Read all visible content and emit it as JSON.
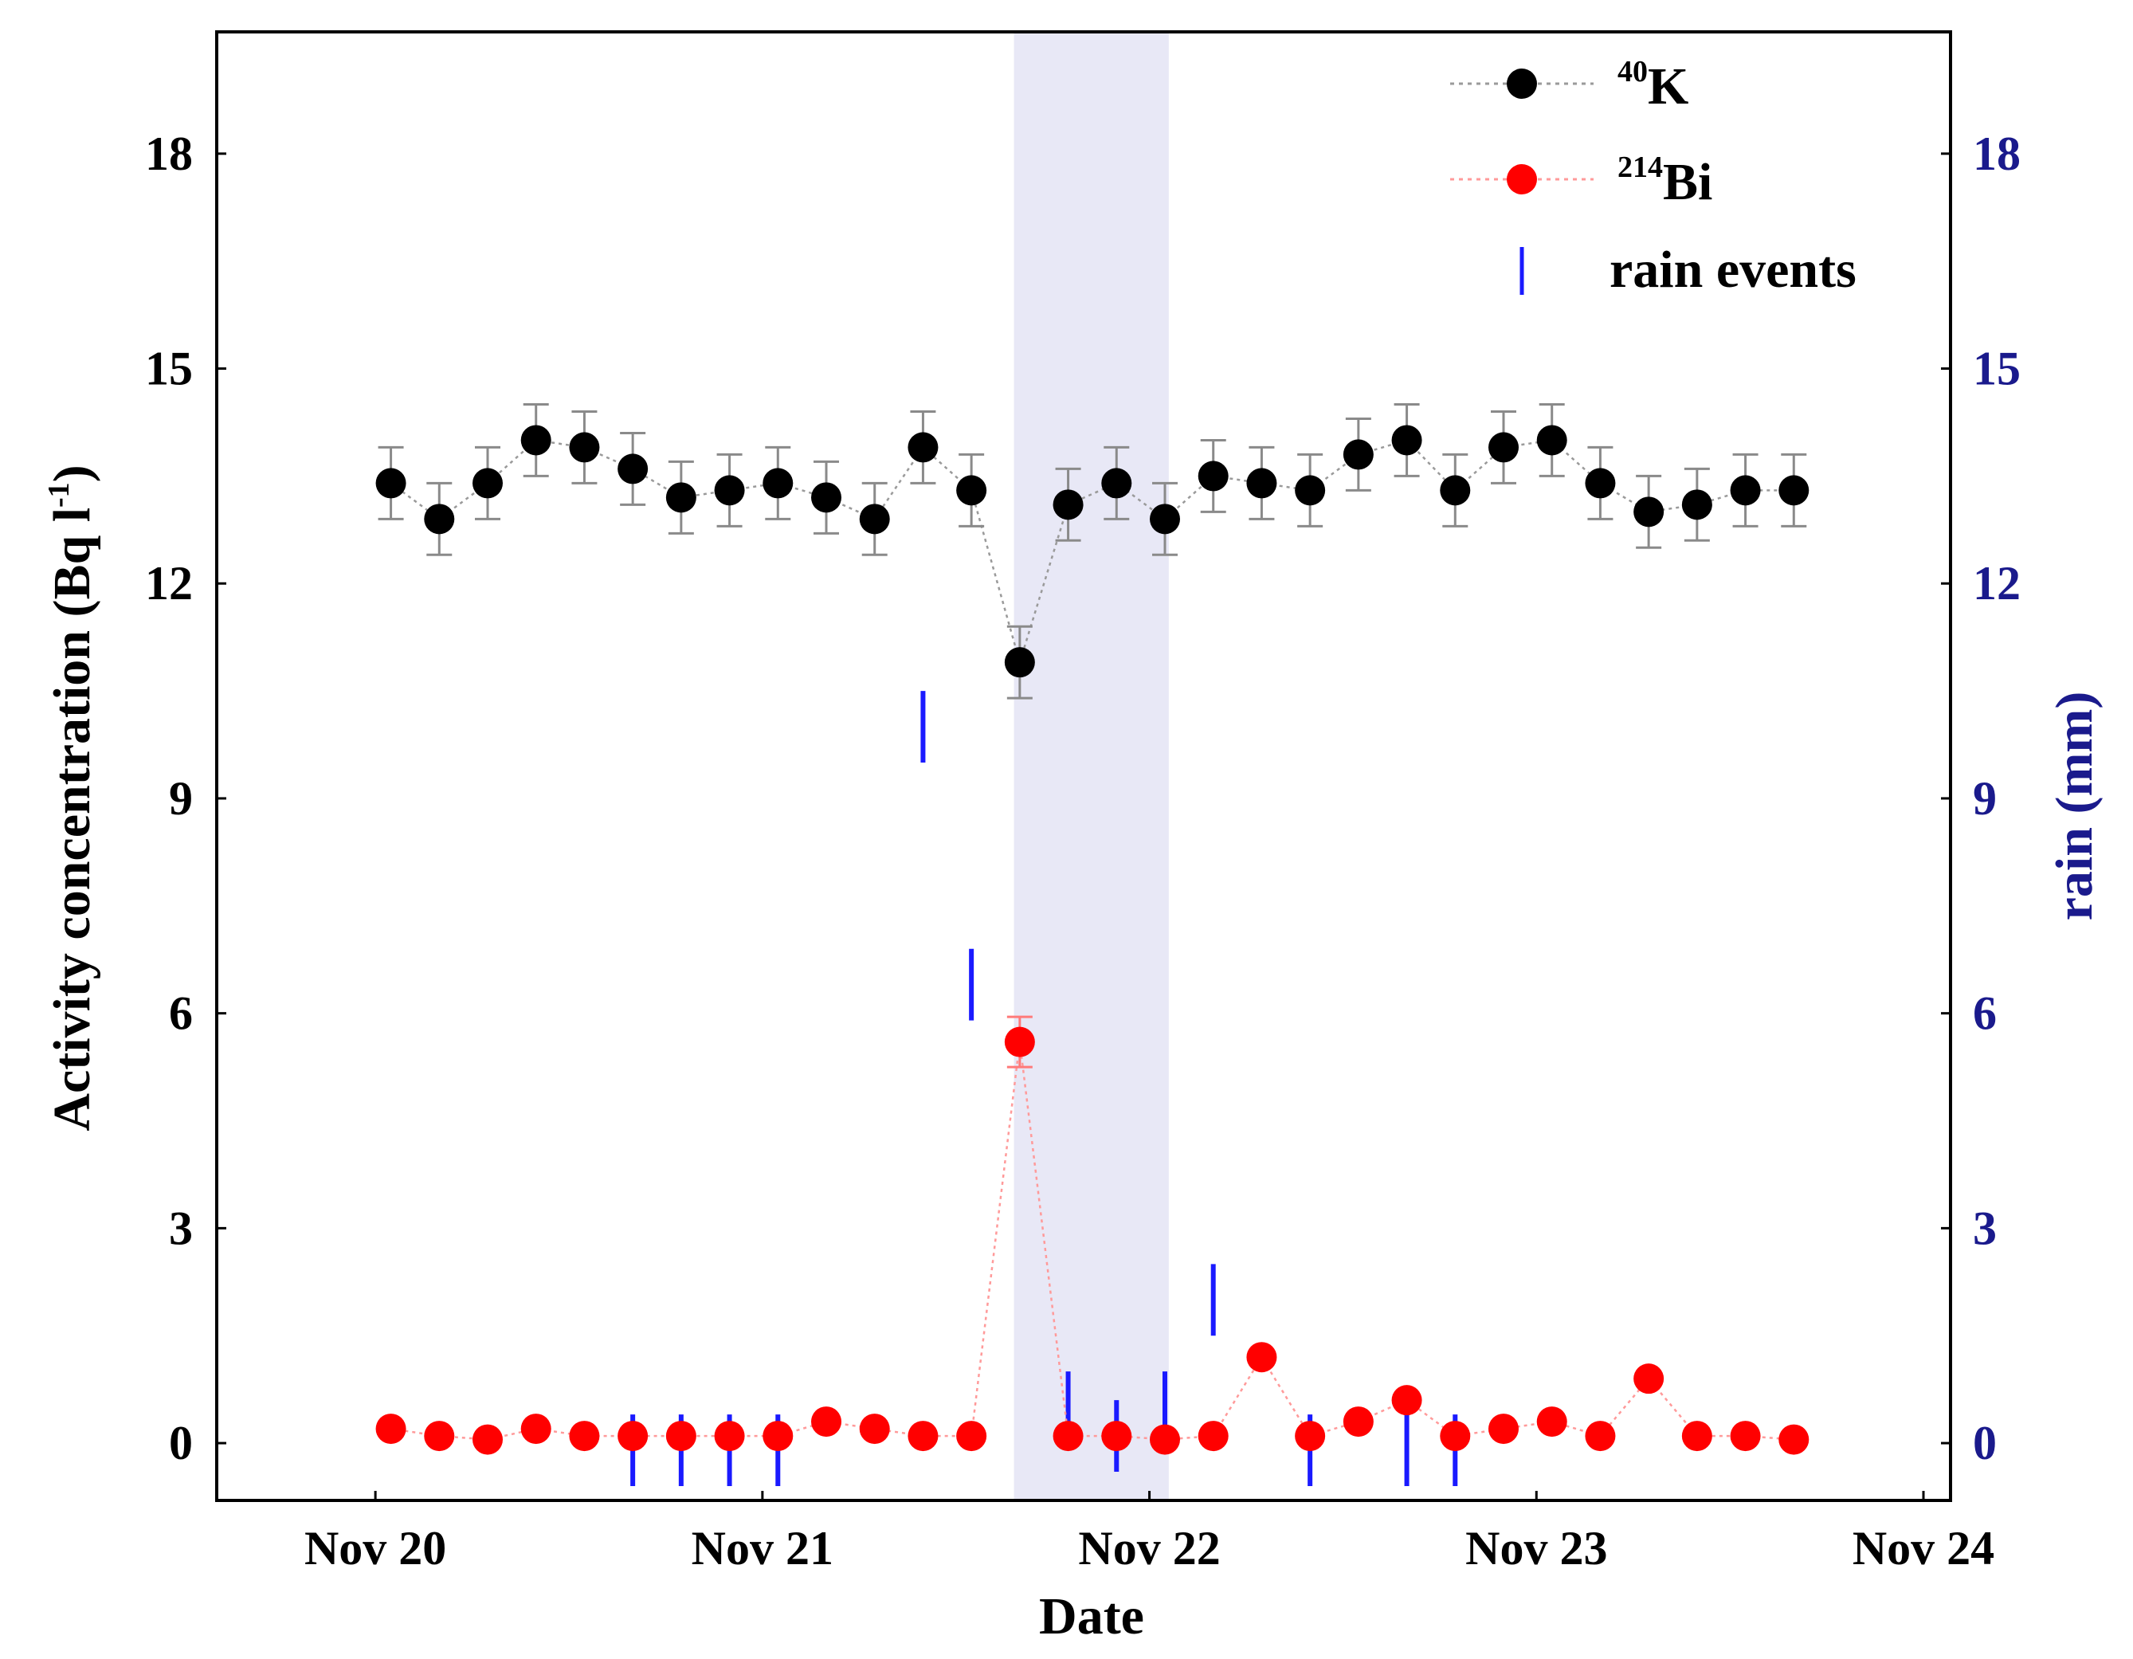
{
  "chart_data": {
    "type": "scatter",
    "xlabel": "Date",
    "ylabel_left": "Activity concentration (Bq l",
    "ylabel_left_sup": "-1",
    "ylabel_left_end": ")",
    "ylabel_right": "rain (mm)",
    "ylim": [
      -0.8,
      19.7
    ],
    "xlim": [
      -0.41,
      4.07
    ],
    "x_ticks": [
      {
        "pos": 0,
        "label": "Nov 20"
      },
      {
        "pos": 1,
        "label": "Nov 21"
      },
      {
        "pos": 2,
        "label": "Nov 22"
      },
      {
        "pos": 3,
        "label": "Nov 23"
      },
      {
        "pos": 4,
        "label": "Nov 24"
      }
    ],
    "y_ticks_left": [
      0,
      3,
      6,
      9,
      12,
      15,
      18
    ],
    "y_ticks_right": [
      0,
      3,
      6,
      9,
      12,
      15,
      18
    ],
    "shaded_region": [
      1.65,
      2.05
    ],
    "colors": {
      "k40": "#000000",
      "bi214": "#ff0000",
      "rain": "#1a1aff",
      "shade": "#e8e8f6",
      "right_axis": "#1a1a8c"
    },
    "x": [
      0.04,
      0.165,
      0.29,
      0.415,
      0.54,
      0.665,
      0.79,
      0.915,
      1.04,
      1.165,
      1.29,
      1.415,
      1.54,
      1.665,
      1.79,
      1.915,
      2.04,
      2.165,
      2.29,
      2.415,
      2.54,
      2.665,
      2.79,
      2.915,
      3.04,
      3.165,
      3.29,
      3.415,
      3.54,
      3.665
    ],
    "series": [
      {
        "name": "40K",
        "label_sup": "40",
        "label_main": "K",
        "values": [
          13.4,
          12.9,
          13.4,
          14.0,
          13.9,
          13.6,
          13.2,
          13.3,
          13.4,
          13.2,
          12.9,
          13.9,
          13.3,
          10.9,
          13.1,
          13.4,
          12.9,
          13.5,
          13.4,
          13.3,
          13.8,
          14.0,
          13.3,
          13.9,
          14.0,
          13.4,
          13.0,
          13.1,
          13.3,
          13.3
        ],
        "error": 0.5
      },
      {
        "name": "214Bi",
        "label_sup": "214",
        "label_main": "Bi",
        "values": [
          0.2,
          0.1,
          0.05,
          0.2,
          0.1,
          0.1,
          0.1,
          0.1,
          0.1,
          0.3,
          0.2,
          0.1,
          0.1,
          5.6,
          0.1,
          0.1,
          0.05,
          0.1,
          1.2,
          0.1,
          0.3,
          0.6,
          0.1,
          0.2,
          0.3,
          0.1,
          0.9,
          0.1,
          0.1,
          0.05
        ]
      }
    ],
    "rain_events": [
      {
        "x": 0.665,
        "low": -0.6,
        "high": 0.4
      },
      {
        "x": 0.79,
        "low": -0.6,
        "high": 0.4
      },
      {
        "x": 0.915,
        "low": -0.6,
        "high": 0.4
      },
      {
        "x": 1.04,
        "low": -0.6,
        "high": 0.4
      },
      {
        "x": 1.415,
        "low": 9.5,
        "high": 10.5
      },
      {
        "x": 1.54,
        "low": 5.9,
        "high": 6.9
      },
      {
        "x": 1.79,
        "low": 0.0,
        "high": 1.0
      },
      {
        "x": 1.915,
        "low": -0.4,
        "high": 0.6
      },
      {
        "x": 2.04,
        "low": 0.0,
        "high": 1.0
      },
      {
        "x": 2.165,
        "low": 1.5,
        "high": 2.5
      },
      {
        "x": 2.415,
        "low": -0.6,
        "high": 0.4
      },
      {
        "x": 2.665,
        "low": -0.6,
        "high": 0.4
      },
      {
        "x": 2.79,
        "low": -0.6,
        "high": 0.4
      }
    ],
    "legend": {
      "position": "top-right",
      "rain_label": "rain events"
    }
  }
}
